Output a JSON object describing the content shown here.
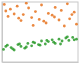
{
  "chart_data": {
    "type": "scatter",
    "xlim": [
      0,
      10
    ],
    "ylim": [
      0,
      10
    ],
    "tick_labels": false,
    "grid": false,
    "series": [
      {
        "color": "#e6731e",
        "marker": "circle",
        "x": [
          0.3,
          1.1,
          2.0,
          2.8,
          3.5,
          4.4,
          5.2,
          6.1,
          7.0,
          7.8,
          8.6,
          9.5,
          0.8,
          1.6,
          2.5,
          3.9,
          4.9,
          5.8,
          6.6,
          7.5,
          8.9,
          9.8,
          0.5,
          2.2,
          3.2,
          4.1,
          5.5,
          6.9,
          8.2,
          9.2
        ],
        "values": [
          9.6,
          8.8,
          9.3,
          7.9,
          9.0,
          8.4,
          9.5,
          8.1,
          9.1,
          8.6,
          9.7,
          8.3,
          7.6,
          8.0,
          6.9,
          7.4,
          7.1,
          6.5,
          7.8,
          7.0,
          7.2,
          6.3,
          8.5,
          7.3,
          9.8,
          6.1,
          6.8,
          7.5,
          6.0,
          7.9
        ]
      },
      {
        "color": "#2a9a2a",
        "marker": "circle",
        "x": [
          0.2,
          0.7,
          1.2,
          1.6,
          2.1,
          2.5,
          3.0,
          3.4,
          3.9,
          4.3,
          4.8,
          5.2,
          5.7,
          6.1,
          6.6,
          7.0,
          7.5,
          7.9,
          8.4,
          8.8,
          9.3,
          9.8,
          0.5,
          1.4,
          2.3,
          3.2,
          4.1,
          5.0,
          5.9,
          6.8,
          7.7,
          8.6,
          9.5
        ],
        "values": [
          2.1,
          2.8,
          2.4,
          2.0,
          2.9,
          2.6,
          2.3,
          3.1,
          2.7,
          3.2,
          2.9,
          3.5,
          3.0,
          3.4,
          3.7,
          3.1,
          3.8,
          3.5,
          4.0,
          3.6,
          4.1,
          3.8,
          2.6,
          2.2,
          3.0,
          2.5,
          3.3,
          2.8,
          3.6,
          3.3,
          3.0,
          4.2,
          3.7
        ]
      }
    ]
  }
}
